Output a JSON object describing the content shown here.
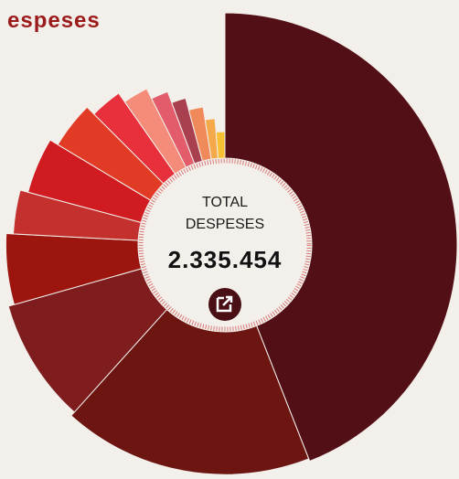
{
  "title": "espeses",
  "center": {
    "line1": "TOTAL",
    "line2": "DESPESES",
    "total": "2.335.454"
  },
  "chart_data": {
    "type": "radial-pie",
    "categories": [
      null,
      null,
      null,
      null,
      null,
      null,
      null,
      null,
      null,
      null,
      null,
      null,
      null,
      null
    ],
    "values": [
      1028896,
      411299,
      208893,
      121963,
      77848,
      103798,
      90823,
      64874,
      54494,
      39573,
      35681,
      38924,
      29193,
      29195
    ],
    "colors": [
      "#530f16",
      "#6d1510",
      "#7f1c1e",
      "#9c150f",
      "#c3302d",
      "#d01b20",
      "#e13b25",
      "#e7303b",
      "#f48c79",
      "#e35c6b",
      "#a9404f",
      "#f08a5a",
      "#f5a94a",
      "#f7c033"
    ]
  }
}
